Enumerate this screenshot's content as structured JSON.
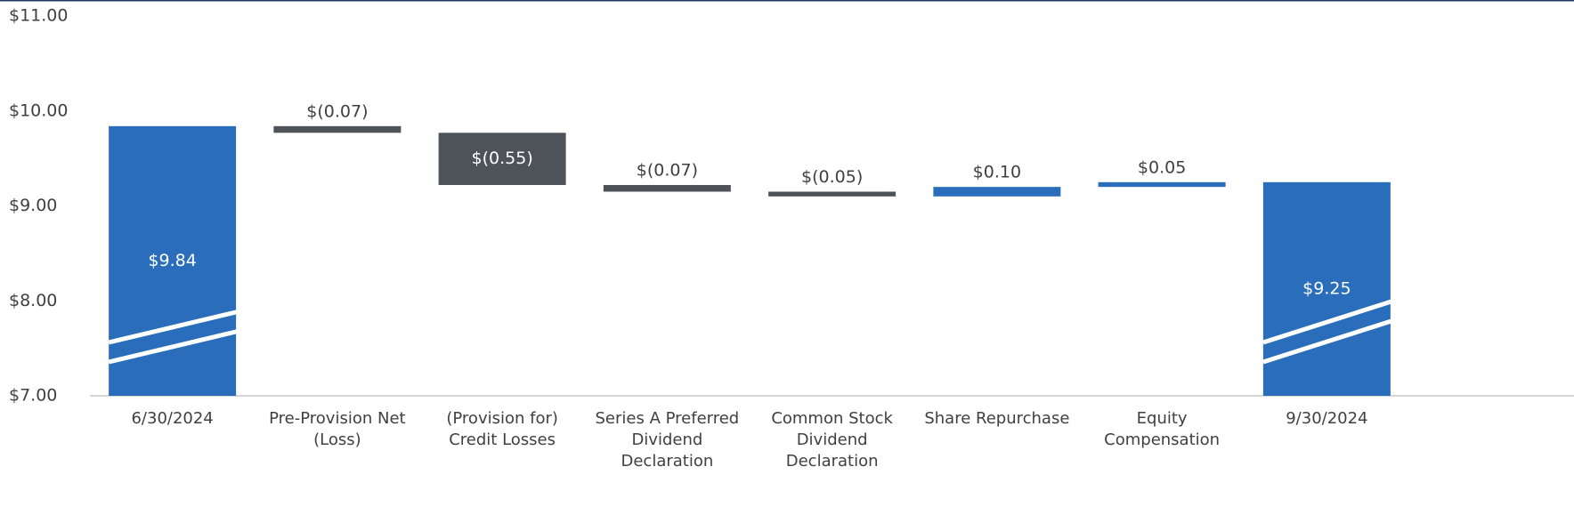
{
  "chart_data": {
    "type": "waterfall",
    "categories": [
      "6/30/2024",
      "Pre-Provision Net (Loss)",
      "(Provision for) Credit Losses",
      "Series A Preferred Dividend Declaration",
      "Common Stock Dividend Declaration",
      "Share Repurchase",
      "Equity Compensation",
      "9/30/2024"
    ],
    "values": [
      9.84,
      -0.07,
      -0.55,
      -0.07,
      -0.05,
      0.1,
      0.05,
      9.25
    ],
    "value_labels": [
      "$9.84",
      "$(0.07)",
      "$(0.55)",
      "$(0.07)",
      "$(0.05)",
      "$0.10",
      "$0.05",
      "$9.25"
    ],
    "total_color": "#2a6ebb",
    "increase_color": "#2a6ebb",
    "decrease_color": "#4d5358",
    "ylim": [
      7,
      11
    ],
    "yticks": [
      {
        "value": 7,
        "label": "$7.00"
      },
      {
        "value": 8,
        "label": "$8.00"
      },
      {
        "value": 9,
        "label": "$9.00"
      },
      {
        "value": 10,
        "label": "$10.00"
      },
      {
        "value": 11,
        "label": "$11.00"
      }
    ],
    "grid": false
  }
}
